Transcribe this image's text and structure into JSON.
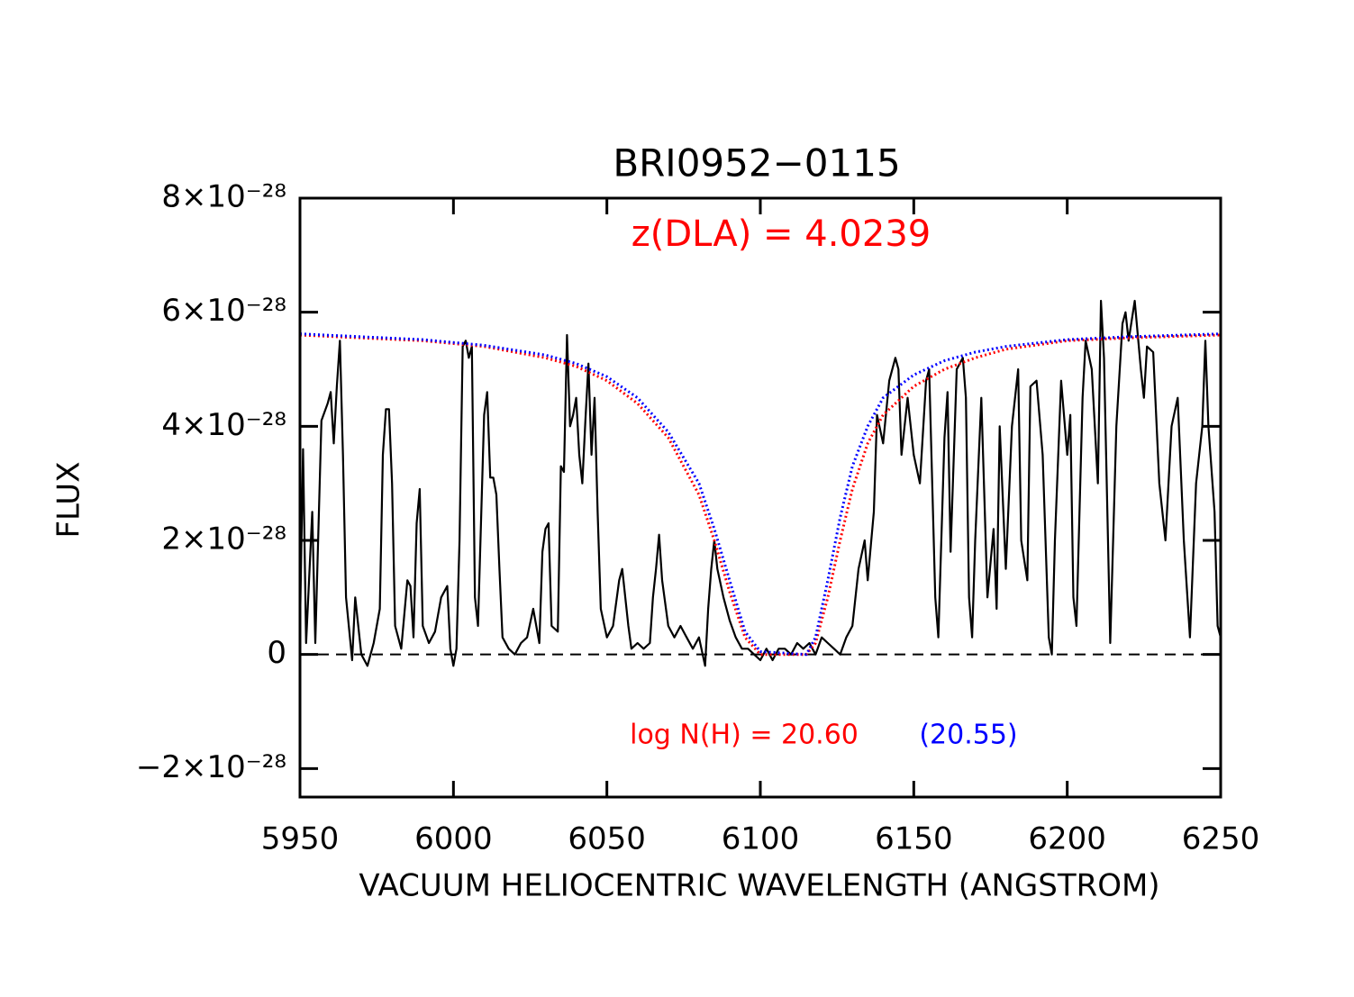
{
  "chart_data": {
    "type": "line",
    "title": "BRI0952−0115",
    "x_label": "VACUUM HELIOCENTRIC WAVELENGTH (ANGSTROM)",
    "y_label": "FLUX",
    "annotations": [
      {
        "text": "z(DLA) = 4.0239",
        "color": "#ff0000"
      },
      {
        "text": "log N(H) = 20.60",
        "color": "#ff0000"
      },
      {
        "text": "(20.55)",
        "color": "#0000ff"
      }
    ],
    "xlim": [
      5950,
      6250
    ],
    "xticks": [
      5950,
      6000,
      6050,
      6100,
      6150,
      6200,
      6250
    ],
    "ylim": [
      -2.5e-28,
      8e-28
    ],
    "yticks": [
      {
        "value": -2e-28,
        "label": "−2×10⁻²⁸"
      },
      0,
      {
        "value": 2e-28,
        "label": "2×10⁻²⁸"
      },
      {
        "value": 4e-28,
        "label": "4×10⁻²⁸"
      },
      {
        "value": 6e-28,
        "label": "6×10⁻²⁸"
      },
      {
        "value": 8e-28,
        "label": "8×10⁻²⁸"
      }
    ],
    "reference_line": {
      "y": 0,
      "style": "dashed",
      "color": "#000000"
    },
    "series": [
      {
        "name": "spectrum",
        "color": "#000000",
        "style": "solid",
        "x": [
          5950,
          5951,
          5952,
          5954,
          5955,
          5957,
          5959,
          5960,
          5961,
          5962,
          5963,
          5964,
          5965,
          5967,
          5968,
          5970,
          5972,
          5974,
          5976,
          5977,
          5978,
          5979,
          5980,
          5981,
          5983,
          5985,
          5986,
          5987,
          5988,
          5989,
          5990,
          5992,
          5994,
          5996,
          5998,
          5999,
          6000,
          6001,
          6002,
          6003,
          6004,
          6005,
          6006,
          6007,
          6008,
          6010,
          6011,
          6012,
          6013,
          6014,
          6015,
          6016,
          6018,
          6020,
          6022,
          6024,
          6026,
          6028,
          6029,
          6030,
          6031,
          6032,
          6034,
          6035,
          6036,
          6037,
          6038,
          6039,
          6040,
          6041,
          6042,
          6043,
          6044,
          6045,
          6046,
          6047,
          6048,
          6050,
          6052,
          6054,
          6055,
          6057,
          6058,
          6060,
          6062,
          6064,
          6065,
          6066,
          6067,
          6068,
          6070,
          6072,
          6074,
          6076,
          6078,
          6080,
          6082,
          6083,
          6084,
          6085,
          6086,
          6088,
          6090,
          6092,
          6094,
          6096,
          6098,
          6100,
          6102,
          6104,
          6106,
          6108,
          6110,
          6112,
          6114,
          6116,
          6118,
          6120,
          6122,
          6124,
          6126,
          6128,
          6130,
          6132,
          6134,
          6135,
          6137,
          6138,
          6140,
          6142,
          6144,
          6145,
          6146,
          6148,
          6150,
          6152,
          6154,
          6155,
          6157,
          6158,
          6160,
          6161,
          6162,
          6164,
          6166,
          6167,
          6168,
          6169,
          6170,
          6172,
          6174,
          6176,
          6177,
          6178,
          6180,
          6182,
          6184,
          6185,
          6187,
          6188,
          6190,
          6192,
          6194,
          6195,
          6196,
          6198,
          6200,
          6201,
          6202,
          6203,
          6205,
          6206,
          6208,
          6210,
          6211,
          6212,
          6214,
          6216,
          6218,
          6219,
          6220,
          6222,
          6224,
          6225,
          6226,
          6228,
          6230,
          6232,
          6234,
          6236,
          6238,
          6240,
          6242,
          6244,
          6245,
          6246,
          6248,
          6249,
          6250
        ],
        "values": [
          5e-29,
          3.6e-28,
          2e-29,
          2.5e-28,
          2e-29,
          4.1e-28,
          4.4e-28,
          4.6e-28,
          3.7e-28,
          4.7e-28,
          5.5e-28,
          3.5e-28,
          1e-28,
          -1e-29,
          1e-28,
          0,
          -2e-29,
          2e-29,
          8e-29,
          3.5e-28,
          4.3e-28,
          4.3e-28,
          3e-28,
          5e-29,
          1e-29,
          1.3e-28,
          1.2e-28,
          3e-29,
          2.3e-28,
          2.9e-28,
          5e-29,
          2e-29,
          4e-29,
          1e-28,
          1.2e-28,
          1e-29,
          -2e-29,
          1e-29,
          2e-28,
          5.4e-28,
          5.5e-28,
          5.2e-28,
          5.4e-28,
          1e-28,
          5e-29,
          4.2e-28,
          4.6e-28,
          3.1e-28,
          3.1e-28,
          2.8e-28,
          1.5e-28,
          3e-29,
          1e-29,
          0,
          2e-29,
          3e-29,
          8e-29,
          2e-29,
          1.8e-28,
          2.2e-28,
          2.3e-28,
          5e-29,
          4e-29,
          3.3e-28,
          3.2e-28,
          5.6e-28,
          4e-28,
          4.2e-28,
          4.5e-28,
          3.5e-28,
          3e-28,
          4.1e-28,
          5.1e-28,
          3.5e-28,
          4.5e-28,
          2.5e-28,
          8e-29,
          3e-29,
          5e-29,
          1.3e-28,
          1.5e-28,
          5e-29,
          1e-29,
          2e-29,
          1e-29,
          2e-29,
          1e-28,
          1.5e-28,
          2.1e-28,
          1.3e-28,
          5e-29,
          3e-29,
          5e-29,
          3e-29,
          1e-29,
          3e-29,
          -2e-29,
          8e-29,
          1.5e-28,
          2e-28,
          1.5e-28,
          1e-28,
          6e-29,
          3e-29,
          1e-29,
          1e-29,
          0,
          -1e-29,
          1e-29,
          -1e-29,
          1e-29,
          1e-29,
          0,
          2e-29,
          1e-29,
          2e-29,
          0,
          3e-29,
          2e-29,
          1e-29,
          0,
          3e-29,
          5e-29,
          1.5e-28,
          2e-28,
          1.3e-28,
          2.5e-28,
          4.2e-28,
          3.7e-28,
          4.8e-28,
          5.2e-28,
          5e-28,
          3.5e-28,
          4.5e-28,
          3.5e-28,
          3e-28,
          4.8e-28,
          5e-28,
          1e-28,
          3e-29,
          3.8e-28,
          4.6e-28,
          1.8e-28,
          5e-28,
          5.2e-28,
          4.5e-28,
          1e-28,
          3e-29,
          2e-28,
          4.5e-28,
          1e-28,
          2.2e-28,
          8e-29,
          4e-28,
          1.5e-28,
          4e-28,
          5e-28,
          2e-28,
          1.3e-28,
          4.7e-28,
          4.8e-28,
          3.5e-28,
          3e-29,
          0,
          2e-28,
          4.8e-28,
          3.5e-28,
          4.2e-28,
          1e-28,
          5e-29,
          4.5e-28,
          5.5e-28,
          5e-28,
          3e-28,
          6.2e-28,
          5.2e-28,
          2e-29,
          4e-28,
          5.8e-28,
          6e-28,
          5.5e-28,
          6.2e-28,
          5e-28,
          4.5e-28,
          5.4e-28,
          5.3e-28,
          3e-28,
          2e-28,
          4e-28,
          4.5e-28,
          2e-28,
          3e-29,
          3e-28,
          4e-28,
          5.5e-28,
          4e-28,
          2.5e-28,
          5e-29,
          3e-29
        ]
      },
      {
        "name": "fit 20.60",
        "color": "#ff0000",
        "style": "dotted",
        "x": [
          5950,
          5970,
          5990,
          6010,
          6030,
          6040,
          6050,
          6060,
          6070,
          6080,
          6085,
          6090,
          6095,
          6100,
          6110,
          6115,
          6118,
          6122,
          6126,
          6130,
          6135,
          6140,
          6150,
          6160,
          6170,
          6180,
          6200,
          6220,
          6250
        ],
        "values": [
          5.6e-28,
          5.55e-28,
          5.5e-28,
          5.4e-28,
          5.2e-28,
          5.05e-28,
          4.8e-28,
          4.4e-28,
          3.8e-28,
          2.8e-28,
          2e-28,
          1.1e-28,
          3e-29,
          0,
          0,
          0,
          2e-29,
          1e-28,
          2e-28,
          2.9e-28,
          3.7e-28,
          4.2e-28,
          4.7e-28,
          5e-28,
          5.2e-28,
          5.35e-28,
          5.5e-28,
          5.55e-28,
          5.6e-28
        ]
      },
      {
        "name": "fit 20.55",
        "color": "#0000ff",
        "style": "dotted",
        "x": [
          5950,
          5970,
          5990,
          6010,
          6030,
          6040,
          6050,
          6060,
          6070,
          6080,
          6085,
          6090,
          6095,
          6100,
          6115,
          6118,
          6122,
          6126,
          6130,
          6135,
          6140,
          6150,
          6160,
          6170,
          6180,
          6200,
          6220,
          6250
        ],
        "values": [
          5.62e-28,
          5.57e-28,
          5.52e-28,
          5.42e-28,
          5.25e-28,
          5.1e-28,
          4.87e-28,
          4.5e-28,
          3.9e-28,
          3e-28,
          2.2e-28,
          1.3e-28,
          4e-29,
          5e-30,
          0,
          3e-29,
          1.3e-28,
          2.4e-28,
          3.3e-28,
          4e-28,
          4.5e-28,
          4.9e-28,
          5.15e-28,
          5.3e-28,
          5.4e-28,
          5.52e-28,
          5.57e-28,
          5.62e-28
        ]
      }
    ]
  }
}
